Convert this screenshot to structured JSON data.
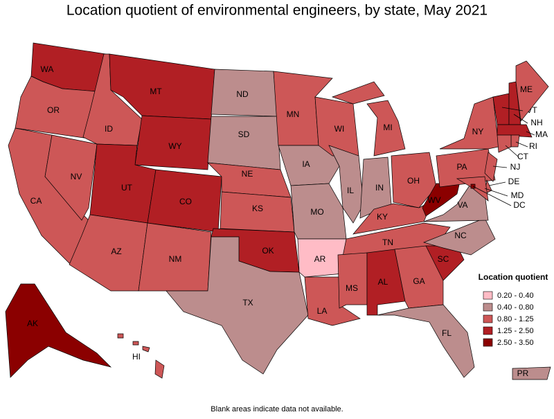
{
  "title": "Location quotient of environmental engineers, by state, May 2021",
  "footnote": "Blank areas indicate data not available.",
  "legend": {
    "title": "Location quotient",
    "items": [
      {
        "label": "0.20 - 0.40",
        "color": "#ffbcc6"
      },
      {
        "label": "0.40 - 0.80",
        "color": "#bc8d8d"
      },
      {
        "label": "0.80 - 1.25",
        "color": "#cd5757"
      },
      {
        "label": "1.25 - 2.50",
        "color": "#b11f24"
      },
      {
        "label": "2.50 - 3.50",
        "color": "#8b0000"
      }
    ]
  },
  "states": [
    {
      "label": "WA",
      "level": 3
    },
    {
      "label": "OR",
      "level": 2
    },
    {
      "label": "CA",
      "level": 2
    },
    {
      "label": "NV",
      "level": 2
    },
    {
      "label": "ID",
      "level": 2
    },
    {
      "label": "MT",
      "level": 3
    },
    {
      "label": "WY",
      "level": 3
    },
    {
      "label": "UT",
      "level": 3
    },
    {
      "label": "CO",
      "level": 3
    },
    {
      "label": "AZ",
      "level": 2
    },
    {
      "label": "NM",
      "level": 2
    },
    {
      "label": "ND",
      "level": 1
    },
    {
      "label": "SD",
      "level": 1
    },
    {
      "label": "NE",
      "level": 2
    },
    {
      "label": "KS",
      "level": 2
    },
    {
      "label": "OK",
      "level": 3
    },
    {
      "label": "TX",
      "level": 1
    },
    {
      "label": "MN",
      "level": 2
    },
    {
      "label": "IA",
      "level": 1
    },
    {
      "label": "MO",
      "level": 1
    },
    {
      "label": "AR",
      "level": 0
    },
    {
      "label": "LA",
      "level": 2
    },
    {
      "label": "WI",
      "level": 2
    },
    {
      "label": "IL",
      "level": 1
    },
    {
      "label": "MI",
      "level": 2
    },
    {
      "label": "IN",
      "level": 1
    },
    {
      "label": "OH",
      "level": 2
    },
    {
      "label": "KY",
      "level": 2
    },
    {
      "label": "TN",
      "level": 2
    },
    {
      "label": "MS",
      "level": 2
    },
    {
      "label": "AL",
      "level": 3
    },
    {
      "label": "GA",
      "level": 2
    },
    {
      "label": "FL",
      "level": 1
    },
    {
      "label": "SC",
      "level": 3
    },
    {
      "label": "NC",
      "level": 1
    },
    {
      "label": "VA",
      "level": 1
    },
    {
      "label": "WV",
      "level": 4
    },
    {
      "label": "PA",
      "level": 2
    },
    {
      "label": "NY",
      "level": 2
    },
    {
      "label": "VT",
      "level": 3
    },
    {
      "label": "NH",
      "level": 3
    },
    {
      "label": "ME",
      "level": 2
    },
    {
      "label": "MA",
      "level": 3
    },
    {
      "label": "RI",
      "level": 2
    },
    {
      "label": "CT",
      "level": 2
    },
    {
      "label": "NJ",
      "level": 2
    },
    {
      "label": "DE",
      "level": 2
    },
    {
      "label": "MD",
      "level": 2
    },
    {
      "label": "DC",
      "level": 4
    },
    {
      "label": "AK",
      "level": 4
    },
    {
      "label": "HI",
      "level": 2
    },
    {
      "label": "PR",
      "level": 1
    }
  ]
}
